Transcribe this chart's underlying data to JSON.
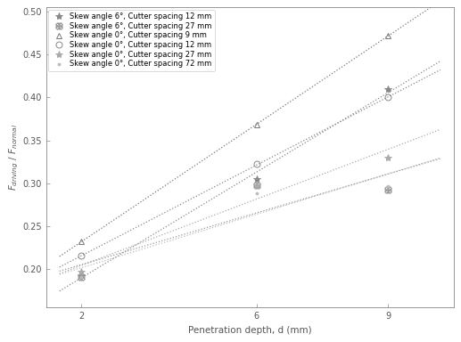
{
  "xlabel": "Penetration depth, d (mm)",
  "ylabel_line1": "F_driving / F_normal",
  "xlim": [
    1.2,
    10.5
  ],
  "ylim": [
    0.155,
    0.505
  ],
  "xticks": [
    2,
    6,
    9
  ],
  "yticks": [
    0.2,
    0.25,
    0.3,
    0.35,
    0.4,
    0.45,
    0.5
  ],
  "ytick_labels": [
    "0.20",
    "0.25",
    "0.30",
    "0.35",
    "0.40",
    "0.45",
    "0.50"
  ],
  "series": [
    {
      "label": "Skew angle 6°, Cutter spacing 12 mm",
      "x": [
        2,
        6,
        9
      ],
      "y": [
        0.193,
        0.305,
        0.41
      ],
      "color": "#888888",
      "marker": "*",
      "mfc": "#888888"
    },
    {
      "label": "Skew angle 6°, Cutter spacing 27 mm",
      "x": [
        2,
        6,
        9
      ],
      "y": [
        0.191,
        0.298,
        0.292
      ],
      "color": "#999999",
      "marker": "$\\mathregular{\\maltese}$",
      "mfc": "#999999"
    },
    {
      "label": "Skew angle 0°, Cutter spacing 9 mm",
      "x": [
        2,
        6,
        9
      ],
      "y": [
        0.232,
        0.368,
        0.472
      ],
      "color": "#777777",
      "marker": "^",
      "mfc": "none"
    },
    {
      "label": "Skew angle 0°, Cutter spacing 12 mm",
      "x": [
        2,
        6,
        9
      ],
      "y": [
        0.215,
        0.322,
        0.4
      ],
      "color": "#888888",
      "marker": "o",
      "mfc": "none"
    },
    {
      "label": "Skew angle 0°, Cutter spacing 27 mm",
      "x": [
        2,
        6,
        9
      ],
      "y": [
        0.197,
        0.298,
        0.33
      ],
      "color": "#aaaaaa",
      "marker": "*",
      "mfc": "#aaaaaa"
    },
    {
      "label": "Skew angle 0°, Cutter spacing 72 mm",
      "x": [
        2,
        6,
        9
      ],
      "y": [
        0.191,
        0.288,
        0.297
      ],
      "color": "#bbbbbb",
      "marker": ".",
      "mfc": "#bbbbbb"
    }
  ],
  "trend_xmin": 1.5,
  "trend_xmax": 10.2,
  "background_color": "#ffffff",
  "legend_fontsize": 6.0,
  "axis_fontsize": 7.5,
  "tick_fontsize": 7.0
}
